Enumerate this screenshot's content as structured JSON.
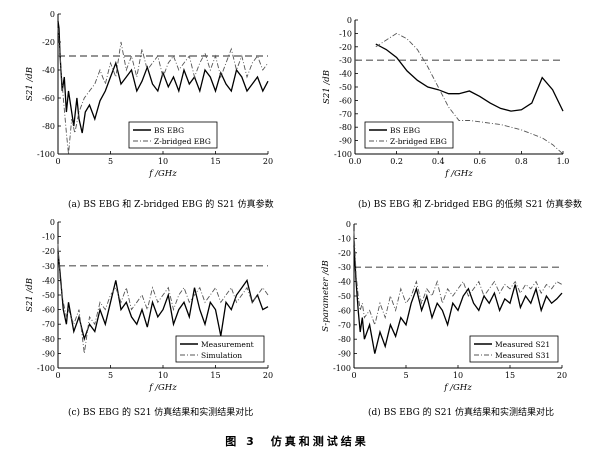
{
  "figure_title": "图 3　仿真和测试结果",
  "chart_data": [
    {
      "type": "line",
      "caption": "(a) BS EBG 和 Z-bridged EBG 的 S21 仿真参数",
      "ylabel": "S21 /dB",
      "xlabel": "f /GHz",
      "xlim": [
        0,
        20
      ],
      "ylim": [
        -100,
        0
      ],
      "xticks": [
        "0",
        "5",
        "10",
        "15",
        "20"
      ],
      "yticks": [
        "0",
        "-20",
        "-40",
        "-60",
        "-80",
        "-100"
      ],
      "reference_line": {
        "y": -30,
        "style": "dashed"
      },
      "legend_position": "bottom-center",
      "series": [
        {
          "name": "BS EBG",
          "style": "solid",
          "x": [
            0,
            0.1,
            0.2,
            0.4,
            0.6,
            0.8,
            1.0,
            1.2,
            1.5,
            1.8,
            2.0,
            2.3,
            2.6,
            3.0,
            3.5,
            4.0,
            4.5,
            5.0,
            5.5,
            6.0,
            6.5,
            7.0,
            7.5,
            8.0,
            8.5,
            9.0,
            9.5,
            10.0,
            10.5,
            11.0,
            11.5,
            12.0,
            12.5,
            13.0,
            13.5,
            14.0,
            14.5,
            15.0,
            15.5,
            16.0,
            16.5,
            17.0,
            17.5,
            18.0,
            18.5,
            19.0,
            19.5,
            20.0
          ],
          "y": [
            -5,
            -10,
            -30,
            -55,
            -45,
            -70,
            -55,
            -65,
            -80,
            -60,
            -75,
            -85,
            -70,
            -65,
            -75,
            -62,
            -55,
            -45,
            -35,
            -50,
            -45,
            -40,
            -55,
            -48,
            -38,
            -50,
            -55,
            -42,
            -52,
            -45,
            -55,
            -40,
            -50,
            -45,
            -55,
            -40,
            -45,
            -55,
            -42,
            -50,
            -55,
            -40,
            -45,
            -55,
            -50,
            -45,
            -55,
            -48
          ]
        },
        {
          "name": "Z-bridged EBG",
          "style": "dashdot",
          "x": [
            0,
            0.2,
            0.5,
            0.8,
            1.0,
            1.3,
            1.6,
            2.0,
            2.5,
            3.0,
            3.5,
            4.0,
            4.5,
            5.0,
            5.5,
            6.0,
            6.5,
            7.0,
            7.5,
            8.0,
            8.5,
            9.0,
            9.5,
            10.0,
            10.5,
            11.0,
            11.5,
            12.0,
            12.5,
            13.0,
            13.5,
            14.0,
            14.5,
            15.0,
            15.5,
            16.0,
            16.5,
            17.0,
            17.5,
            18.0,
            18.5,
            19.0,
            19.5,
            20.0
          ],
          "y": [
            -10,
            -30,
            -60,
            -85,
            -100,
            -75,
            -85,
            -70,
            -60,
            -55,
            -50,
            -40,
            -50,
            -35,
            -45,
            -20,
            -40,
            -30,
            -45,
            -25,
            -40,
            -35,
            -30,
            -45,
            -35,
            -30,
            -40,
            -35,
            -30,
            -45,
            -35,
            -28,
            -40,
            -30,
            -45,
            -35,
            -25,
            -40,
            -30,
            -45,
            -35,
            -30,
            -40,
            -35
          ]
        }
      ]
    },
    {
      "type": "line",
      "caption": "(b) BS EBG 和 Z-bridged EBG 的低频 S21 仿真参数",
      "ylabel": "S21 /dB",
      "xlabel": "f /GHz",
      "xlim": [
        0,
        1.0
      ],
      "ylim": [
        -100,
        0
      ],
      "xticks": [
        "0.0",
        "0.2",
        "0.4",
        "0.6",
        "0.8",
        "1.0"
      ],
      "yticks": [
        "0",
        "-10",
        "-20",
        "-30",
        "-40",
        "-50",
        "-60",
        "-70",
        "-80",
        "-90",
        "-100"
      ],
      "reference_line": {
        "y": -30,
        "style": "dashed"
      },
      "legend_position": "bottom-left",
      "series": [
        {
          "name": "BS EBG",
          "style": "solid",
          "x": [
            0.1,
            0.15,
            0.2,
            0.25,
            0.3,
            0.35,
            0.4,
            0.45,
            0.5,
            0.55,
            0.6,
            0.65,
            0.7,
            0.75,
            0.8,
            0.85,
            0.9,
            0.95,
            1.0
          ],
          "y": [
            -18,
            -22,
            -28,
            -38,
            -45,
            -50,
            -52,
            -55,
            -55,
            -53,
            -57,
            -62,
            -66,
            -68,
            -67,
            -62,
            -43,
            -52,
            -68
          ]
        },
        {
          "name": "Z-bridged EBG",
          "style": "dashdot",
          "x": [
            0.1,
            0.15,
            0.2,
            0.25,
            0.3,
            0.35,
            0.4,
            0.45,
            0.5,
            0.55,
            0.6,
            0.65,
            0.7,
            0.75,
            0.8,
            0.85,
            0.9,
            0.95,
            1.0
          ],
          "y": [
            -20,
            -15,
            -10,
            -14,
            -22,
            -35,
            -50,
            -65,
            -75,
            -75,
            -76,
            -77,
            -78,
            -80,
            -82,
            -85,
            -88,
            -93,
            -100
          ]
        }
      ]
    },
    {
      "type": "line",
      "caption": "(c) BS EBG 的 S21 仿真结果和实测结果对比",
      "ylabel": "S21 /dB",
      "xlabel": "f /GHz",
      "xlim": [
        0,
        20
      ],
      "ylim": [
        -100,
        0
      ],
      "xticks": [
        "0",
        "5",
        "10",
        "15",
        "20"
      ],
      "yticks": [
        "0",
        "-10",
        "-20",
        "-30",
        "-40",
        "-50",
        "-60",
        "-70",
        "-80",
        "-90",
        "-100"
      ],
      "reference_line": {
        "y": -30,
        "style": "dashed"
      },
      "legend_position": "bottom-right",
      "series": [
        {
          "name": "Measurement",
          "style": "solid",
          "x": [
            0,
            0.2,
            0.5,
            0.8,
            1.0,
            1.5,
            2.0,
            2.5,
            3.0,
            3.5,
            4.0,
            4.5,
            5.0,
            5.5,
            6.0,
            6.5,
            7.0,
            7.5,
            8.0,
            8.5,
            9.0,
            9.5,
            10.0,
            10.5,
            11.0,
            11.5,
            12.0,
            12.5,
            13.0,
            13.5,
            14.0,
            14.5,
            15.0,
            15.5,
            16.0,
            16.5,
            17.0,
            17.5,
            18.0,
            18.5,
            19.0,
            19.5,
            20.0
          ],
          "y": [
            -20,
            -35,
            -60,
            -70,
            -55,
            -75,
            -65,
            -80,
            -70,
            -75,
            -60,
            -70,
            -55,
            -40,
            -60,
            -55,
            -65,
            -70,
            -60,
            -72,
            -55,
            -65,
            -60,
            -50,
            -70,
            -60,
            -55,
            -65,
            -45,
            -60,
            -70,
            -55,
            -60,
            -78,
            -55,
            -60,
            -50,
            -45,
            -40,
            -55,
            -50,
            -60,
            -58
          ]
        },
        {
          "name": "Simulation",
          "style": "dashdot",
          "x": [
            0,
            0.2,
            0.5,
            0.8,
            1.0,
            1.5,
            2.0,
            2.5,
            3.0,
            3.5,
            4.0,
            4.5,
            5.0,
            5.5,
            6.0,
            6.5,
            7.0,
            7.5,
            8.0,
            8.5,
            9.0,
            9.5,
            10.0,
            10.5,
            11.0,
            11.5,
            12.0,
            12.5,
            13.0,
            13.5,
            14.0,
            14.5,
            15.0,
            15.5,
            16.0,
            16.5,
            17.0,
            17.5,
            18.0,
            18.5,
            19.0,
            19.5,
            20.0
          ],
          "y": [
            -15,
            -40,
            -55,
            -65,
            -60,
            -70,
            -60,
            -90,
            -65,
            -70,
            -55,
            -60,
            -50,
            -45,
            -55,
            -45,
            -60,
            -55,
            -50,
            -60,
            -45,
            -55,
            -50,
            -45,
            -60,
            -50,
            -45,
            -55,
            -50,
            -45,
            -55,
            -50,
            -45,
            -55,
            -50,
            -45,
            -55,
            -50,
            -45,
            -55,
            -50,
            -45,
            -50
          ]
        }
      ]
    },
    {
      "type": "line",
      "caption": "(d) BS EBG 的 S21 仿真结果和实测结果对比",
      "ylabel": "S-parameter /dB",
      "xlabel": "f /GHz",
      "xlim": [
        0,
        20
      ],
      "ylim": [
        -100,
        0
      ],
      "xticks": [
        "0",
        "5",
        "10",
        "15",
        "20"
      ],
      "yticks": [
        "0",
        "-10",
        "-20",
        "-30",
        "-40",
        "-50",
        "-60",
        "-70",
        "-80",
        "-90",
        "-100"
      ],
      "reference_line": {
        "y": -30,
        "style": "dashed"
      },
      "legend_position": "bottom-right",
      "series": [
        {
          "name": "Measured  S21",
          "style": "solid",
          "x": [
            0,
            0.2,
            0.4,
            0.6,
            0.8,
            1.0,
            1.5,
            2.0,
            2.5,
            3.0,
            3.5,
            4.0,
            4.5,
            5.0,
            5.5,
            6.0,
            6.5,
            7.0,
            7.5,
            8.0,
            8.5,
            9.0,
            9.5,
            10.0,
            10.5,
            11.0,
            11.5,
            12.0,
            12.5,
            13.0,
            13.5,
            14.0,
            14.5,
            15.0,
            15.5,
            16.0,
            16.5,
            17.0,
            17.5,
            18.0,
            18.5,
            19.0,
            19.5,
            20.0
          ],
          "y": [
            -15,
            -40,
            -60,
            -75,
            -65,
            -80,
            -70,
            -90,
            -75,
            -85,
            -70,
            -78,
            -65,
            -70,
            -55,
            -45,
            -60,
            -50,
            -65,
            -55,
            -60,
            -70,
            -55,
            -60,
            -50,
            -45,
            -55,
            -60,
            -50,
            -55,
            -48,
            -60,
            -52,
            -55,
            -42,
            -58,
            -50,
            -55,
            -45,
            -60,
            -50,
            -55,
            -52,
            -48
          ]
        },
        {
          "name": "Measured  S31",
          "style": "dashdot",
          "x": [
            0,
            0.2,
            0.4,
            0.6,
            0.8,
            1.0,
            1.5,
            2.0,
            2.5,
            3.0,
            3.5,
            4.0,
            4.5,
            5.0,
            5.5,
            6.0,
            6.5,
            7.0,
            7.5,
            8.0,
            8.5,
            9.0,
            9.5,
            10.0,
            10.5,
            11.0,
            11.5,
            12.0,
            12.5,
            13.0,
            13.5,
            14.0,
            14.5,
            15.0,
            15.5,
            16.0,
            16.5,
            17.0,
            17.5,
            18.0,
            18.5,
            19.0,
            19.5,
            20.0
          ],
          "y": [
            -5,
            -35,
            -50,
            -60,
            -55,
            -65,
            -60,
            -70,
            -55,
            -65,
            -50,
            -60,
            -45,
            -55,
            -50,
            -40,
            -55,
            -45,
            -50,
            -40,
            -55,
            -45,
            -50,
            -45,
            -40,
            -50,
            -45,
            -40,
            -50,
            -45,
            -40,
            -48,
            -42,
            -45,
            -40,
            -48,
            -42,
            -45,
            -40,
            -48,
            -42,
            -45,
            -40,
            -42
          ]
        }
      ]
    }
  ]
}
